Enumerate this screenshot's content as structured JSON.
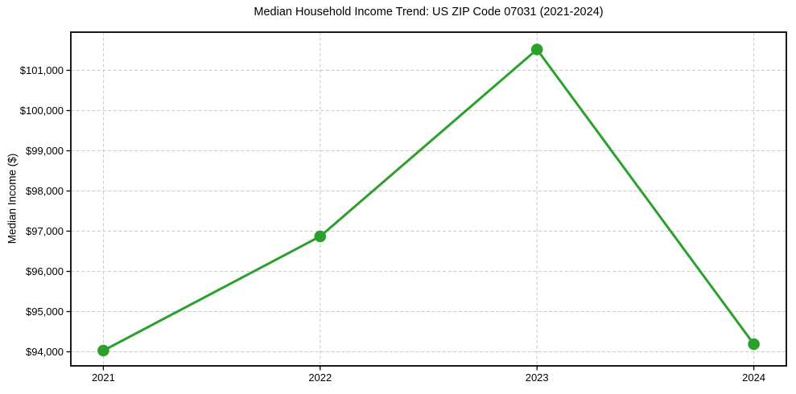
{
  "chart_data": {
    "type": "line",
    "title": "Median Household Income Trend: US ZIP Code 07031 (2021-2024)",
    "xlabel": "",
    "ylabel": "Median Income ($)",
    "x": [
      2021,
      2022,
      2023,
      2024
    ],
    "xtick_labels": [
      "2021",
      "2022",
      "2023",
      "2024"
    ],
    "series": [
      {
        "name": "Median Household Income",
        "values": [
          94030,
          96870,
          101520,
          94190
        ]
      }
    ],
    "yticks": [
      94000,
      95000,
      96000,
      97000,
      98000,
      99000,
      100000,
      101000
    ],
    "ytick_labels": [
      "$94,000",
      "$95,000",
      "$96,000",
      "$97,000",
      "$98,000",
      "$99,000",
      "$100,000",
      "$101,000"
    ],
    "ylim": [
      93650,
      101950
    ],
    "xlim": [
      2020.85,
      2024.15
    ],
    "grid": true,
    "grid_style": "dashed",
    "legend": "none",
    "colors": {
      "line": "#2ca02c",
      "marker": "#2ca02c",
      "grid": "#c9c9c9",
      "axis": "#000000",
      "text": "#000000",
      "background": "#ffffff"
    }
  }
}
